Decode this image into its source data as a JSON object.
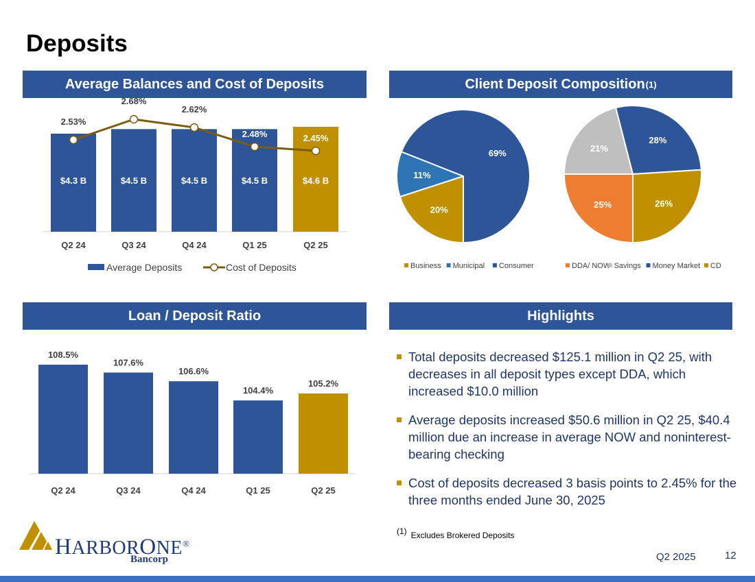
{
  "page": {
    "title": "Deposits",
    "footer_date": "Q2 2025",
    "page_number": "12"
  },
  "panels": {
    "avg_balances": "Average Balances and Cost of Deposits",
    "composition": "Client Deposit Composition",
    "composition_sup": "(1)",
    "loan_deposit": "Loan / Deposit Ratio",
    "highlights": "Highlights"
  },
  "colors": {
    "navy": "#2e5597",
    "gold": "#c09000",
    "line": "#7a5c10",
    "light_blue": "#2e75b6",
    "orange": "#ed7d31",
    "gray": "#bfbfbf"
  },
  "chart_data": [
    {
      "type": "bar",
      "categories": [
        "Q2 24",
        "Q3 24",
        "Q4 24",
        "Q1 25",
        "Q2 25"
      ],
      "series": [
        {
          "name": "Average Deposits",
          "values": [
            4.3,
            4.5,
            4.5,
            4.5,
            4.6
          ],
          "labels": [
            "$4.3 B",
            "$4.5 B",
            "$4.5 B",
            "$4.5 B",
            "$4.6 B"
          ],
          "colors": [
            "#2e5597",
            "#2e5597",
            "#2e5597",
            "#2e5597",
            "#c09000"
          ]
        },
        {
          "name": "Cost of Deposits",
          "type": "line",
          "values": [
            2.53,
            2.68,
            2.62,
            2.48,
            2.45
          ],
          "labels": [
            "2.53%",
            "2.68%",
            "2.62%",
            "2.48%",
            "2.45%"
          ]
        }
      ],
      "legend": "bottom"
    },
    {
      "type": "pie",
      "labels": [
        "Business",
        "Municipal",
        "Consumer"
      ],
      "values": [
        20,
        11,
        69
      ],
      "value_labels": [
        "20%",
        "11%",
        "69%"
      ],
      "colors": [
        "#c09000",
        "#2e75b6",
        "#2e5597"
      ],
      "legend": "bottom"
    },
    {
      "type": "pie",
      "labels": [
        "DDA/ NOW",
        "Savings",
        "Money Market",
        "CD"
      ],
      "values": [
        25,
        21,
        28,
        26
      ],
      "value_labels": [
        "25%",
        "21%",
        "28%",
        "26%"
      ],
      "colors": [
        "#ed7d31",
        "#bfbfbf",
        "#2e5597",
        "#c09000"
      ],
      "legend": "bottom"
    },
    {
      "type": "bar",
      "categories": [
        "Q2 24",
        "Q3 24",
        "Q4 24",
        "Q1 25",
        "Q2 25"
      ],
      "values": [
        108.5,
        107.6,
        106.6,
        104.4,
        105.2
      ],
      "labels": [
        "108.5%",
        "107.6%",
        "106.6%",
        "104.4%",
        "105.2%"
      ],
      "colors": [
        "#2e5597",
        "#2e5597",
        "#2e5597",
        "#2e5597",
        "#c09000"
      ]
    }
  ],
  "highlights": [
    "Total deposits decreased $125.1 million in Q2 25, with decreases in all deposit types except DDA, which increased $10.0 million",
    "Average deposits increased $50.6 million in Q2 25, $40.4 million due an increase in average NOW and noninterest-bearing checking",
    "Cost of deposits decreased 3 basis points to 2.45% for the three months ended June 30, 2025"
  ],
  "footnote": {
    "mark": "(1)",
    "text": "Excludes Brokered Deposits"
  },
  "logo": {
    "name_part1": "H",
    "name_part2": "ARBOR",
    "name_part3": "O",
    "name_part4": "NE",
    "registered": "®",
    "sub": "Bancorp"
  }
}
